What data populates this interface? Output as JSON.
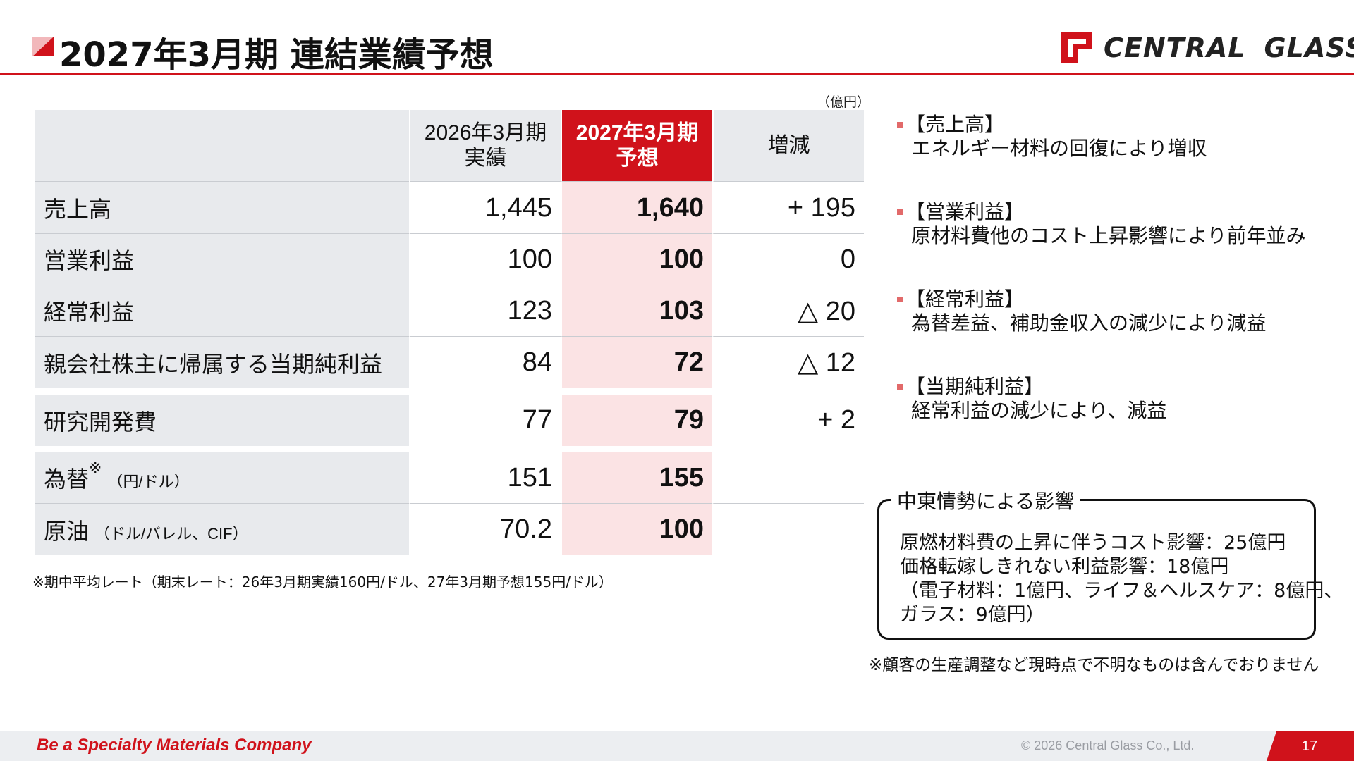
{
  "header": {
    "title": "2027年3月期 連結業績予想",
    "logo_left": "CENTRAL",
    "logo_right": "GLASS"
  },
  "colors": {
    "brand_red": "#d0121b",
    "forecast_bg": "#fbe3e4",
    "label_bg": "#e8eaed"
  },
  "table": {
    "unit": "（億円）",
    "headers": {
      "prev_line1": "2026年3月期",
      "prev_line2": "実績",
      "cur_line1": "2027年3月期",
      "cur_line2": "予想",
      "diff": "増減"
    },
    "rows": [
      {
        "label": "売上高",
        "prev": "1,445",
        "cur": "1,640",
        "diff": "+ 195"
      },
      {
        "label": "営業利益",
        "prev": "100",
        "cur": "100",
        "diff": "0"
      },
      {
        "label": "経常利益",
        "prev": "123",
        "cur": "103",
        "diff": "△ 20"
      },
      {
        "label": "親会社株主に帰属する当期純利益",
        "prev": "84",
        "cur": "72",
        "diff": "△ 12"
      }
    ],
    "rnd": {
      "label": "研究開発費",
      "prev": "77",
      "cur": "79",
      "diff": "+ 2"
    },
    "fx": {
      "label": "為替",
      "mark": "※",
      "unit": "（円/ドル）",
      "prev": "151",
      "cur": "155"
    },
    "oil": {
      "label": "原油",
      "unit": "（ドル/バレル、CIF）",
      "prev": "70.2",
      "cur": "100"
    }
  },
  "footnote": "※期中平均レート（期末レート：26年3月期実績160円/ドル、27年3月期予想155円/ドル）",
  "bullets": [
    {
      "heading": "【売上高】",
      "text": "エネルギー材料の回復により増収"
    },
    {
      "heading": "【営業利益】",
      "text": "原材料費他のコスト上昇影響により前年並み"
    },
    {
      "heading": "【経常利益】",
      "text": "為替差益、補助金収入の減少により減益"
    },
    {
      "heading": "【当期純利益】",
      "text": "経常利益の減少により、減益"
    }
  ],
  "middle_east": {
    "title": "中東情勢による影響",
    "lines": [
      "原燃材料費の上昇に伴うコスト影響：25億円",
      "価格転嫁しきれない利益影響：18億円",
      "（電子材料：1億円、ライフ＆ヘルスケア：8億円、",
      "ガラス：9億円）"
    ],
    "note": "※顧客の生産調整など現時点で不明なものは含んでおりません"
  },
  "footer": {
    "slogan": "Be a Specialty Materials Company",
    "copyright": "© 2026 Central Glass Co., Ltd.",
    "page": "17"
  }
}
